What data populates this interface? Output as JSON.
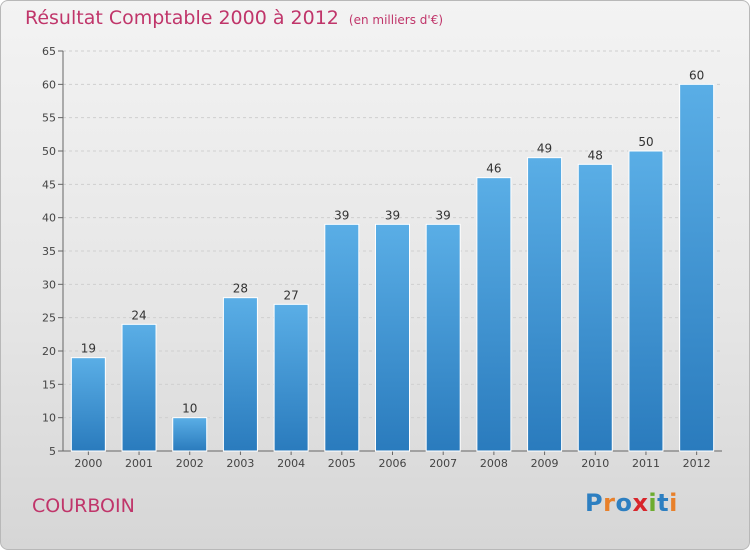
{
  "header": {
    "title": "Résultat Comptable 2000 à 2012",
    "unit": "(en milliers d'€)"
  },
  "footer": {
    "commune": "COURBOIN",
    "logo_text": "Proxiti",
    "logo_colors": [
      "#2d7fc1",
      "#e8802a",
      "#2d7fc1",
      "#d8252b",
      "#6dac2f",
      "#2d7fc1",
      "#e8802a"
    ]
  },
  "colors": {
    "title": "#c0356a",
    "bar_top": "#5aaee6",
    "bar_bottom": "#2a7bbd",
    "grid": "#cfcfcf"
  },
  "chart_data": {
    "type": "bar",
    "title": "Résultat Comptable 2000 à 2012",
    "categories": [
      "2000",
      "2001",
      "2002",
      "2003",
      "2004",
      "2005",
      "2006",
      "2007",
      "2008",
      "2009",
      "2010",
      "2011",
      "2012"
    ],
    "values": [
      19,
      24,
      10,
      28,
      27,
      39,
      39,
      39,
      46,
      49,
      48,
      50,
      60
    ],
    "ylim": [
      5,
      65
    ],
    "yticks": [
      5,
      10,
      15,
      20,
      25,
      30,
      35,
      40,
      45,
      50,
      55,
      60,
      65
    ],
    "grid": true,
    "xlabel": "",
    "ylabel": ""
  }
}
